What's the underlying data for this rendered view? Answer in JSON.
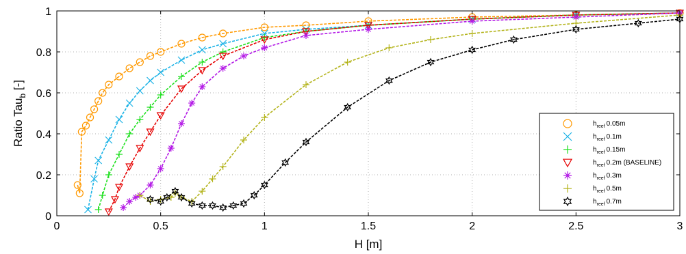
{
  "chart_data": {
    "type": "line",
    "xlabel": "H [m]",
    "ylabel_main": "Ratio Tau",
    "ylabel_sub": "b",
    "ylabel_suffix": " [-]",
    "xlim": [
      0,
      3
    ],
    "ylim": [
      0,
      1
    ],
    "xticks": [
      "0",
      "0.5",
      "1",
      "1.5",
      "2",
      "2.5",
      "3"
    ],
    "yticks": [
      "0",
      "0.2",
      "0.4",
      "0.6",
      "0.8",
      "1"
    ],
    "grid": "dotted",
    "legend_position": "bottom-right",
    "legend_prefix": "h",
    "legend_sub": "reef",
    "series": [
      {
        "name": "0.05m",
        "color": "#ff9900",
        "marker": "circle",
        "x": [
          0.1,
          0.11,
          0.12,
          0.14,
          0.16,
          0.18,
          0.2,
          0.22,
          0.25,
          0.3,
          0.35,
          0.4,
          0.45,
          0.5,
          0.6,
          0.7,
          0.8,
          1.0,
          1.2,
          1.5,
          2.0,
          2.5,
          3.0
        ],
        "y": [
          0.15,
          0.11,
          0.41,
          0.44,
          0.48,
          0.52,
          0.56,
          0.6,
          0.64,
          0.68,
          0.72,
          0.75,
          0.78,
          0.8,
          0.84,
          0.87,
          0.89,
          0.92,
          0.93,
          0.95,
          0.97,
          0.98,
          0.99
        ]
      },
      {
        "name": "0.1m",
        "color": "#1ab2e6",
        "marker": "x",
        "x": [
          0.15,
          0.18,
          0.2,
          0.25,
          0.3,
          0.35,
          0.4,
          0.45,
          0.5,
          0.6,
          0.7,
          0.8,
          1.0,
          1.2,
          1.5,
          2.0,
          2.5,
          3.0
        ],
        "y": [
          0.03,
          0.18,
          0.27,
          0.37,
          0.47,
          0.55,
          0.61,
          0.66,
          0.7,
          0.76,
          0.81,
          0.84,
          0.89,
          0.91,
          0.93,
          0.96,
          0.98,
          0.99
        ]
      },
      {
        "name": "0.15m",
        "color": "#1ee01e",
        "marker": "plus",
        "x": [
          0.2,
          0.22,
          0.25,
          0.3,
          0.35,
          0.4,
          0.45,
          0.5,
          0.6,
          0.7,
          0.8,
          1.0,
          1.2,
          1.5,
          2.0,
          2.5,
          3.0
        ],
        "y": [
          0.03,
          0.1,
          0.2,
          0.3,
          0.4,
          0.47,
          0.53,
          0.59,
          0.68,
          0.75,
          0.8,
          0.87,
          0.9,
          0.93,
          0.96,
          0.98,
          0.99
        ]
      },
      {
        "name": "0.2m (BASELINE)",
        "color": "#e60000",
        "marker": "triangle",
        "x": [
          0.25,
          0.28,
          0.3,
          0.35,
          0.4,
          0.45,
          0.5,
          0.6,
          0.7,
          0.8,
          1.0,
          1.2,
          1.5,
          2.0,
          2.5,
          3.0
        ],
        "y": [
          0.02,
          0.08,
          0.14,
          0.24,
          0.33,
          0.41,
          0.49,
          0.62,
          0.71,
          0.78,
          0.86,
          0.9,
          0.93,
          0.96,
          0.98,
          0.99
        ]
      },
      {
        "name": "0.3m",
        "color": "#b31ae6",
        "marker": "star",
        "x": [
          0.32,
          0.35,
          0.38,
          0.4,
          0.45,
          0.5,
          0.55,
          0.6,
          0.65,
          0.7,
          0.8,
          0.9,
          1.0,
          1.2,
          1.5,
          2.0,
          2.5,
          3.0
        ],
        "y": [
          0.04,
          0.07,
          0.09,
          0.1,
          0.15,
          0.23,
          0.33,
          0.45,
          0.55,
          0.63,
          0.72,
          0.78,
          0.82,
          0.88,
          0.91,
          0.95,
          0.97,
          0.99
        ]
      },
      {
        "name": "0.5m",
        "color": "#b3b31a",
        "marker": "plus",
        "x": [
          0.4,
          0.45,
          0.5,
          0.55,
          0.57,
          0.6,
          0.65,
          0.7,
          0.75,
          0.8,
          0.9,
          1.0,
          1.2,
          1.4,
          1.6,
          1.8,
          2.0,
          2.5,
          3.0
        ],
        "y": [
          0.1,
          0.07,
          0.08,
          0.09,
          0.11,
          0.09,
          0.07,
          0.12,
          0.18,
          0.24,
          0.37,
          0.48,
          0.64,
          0.75,
          0.82,
          0.86,
          0.89,
          0.94,
          0.98
        ]
      },
      {
        "name": "0.7m",
        "color": "#000000",
        "marker": "hexagram",
        "x": [
          0.45,
          0.5,
          0.53,
          0.57,
          0.6,
          0.65,
          0.7,
          0.75,
          0.8,
          0.85,
          0.9,
          0.95,
          1.0,
          1.1,
          1.2,
          1.4,
          1.6,
          1.8,
          2.0,
          2.2,
          2.5,
          2.8,
          3.0
        ],
        "y": [
          0.08,
          0.07,
          0.09,
          0.12,
          0.09,
          0.06,
          0.05,
          0.05,
          0.04,
          0.05,
          0.06,
          0.1,
          0.15,
          0.26,
          0.36,
          0.53,
          0.66,
          0.75,
          0.81,
          0.86,
          0.91,
          0.94,
          0.96
        ]
      }
    ]
  }
}
